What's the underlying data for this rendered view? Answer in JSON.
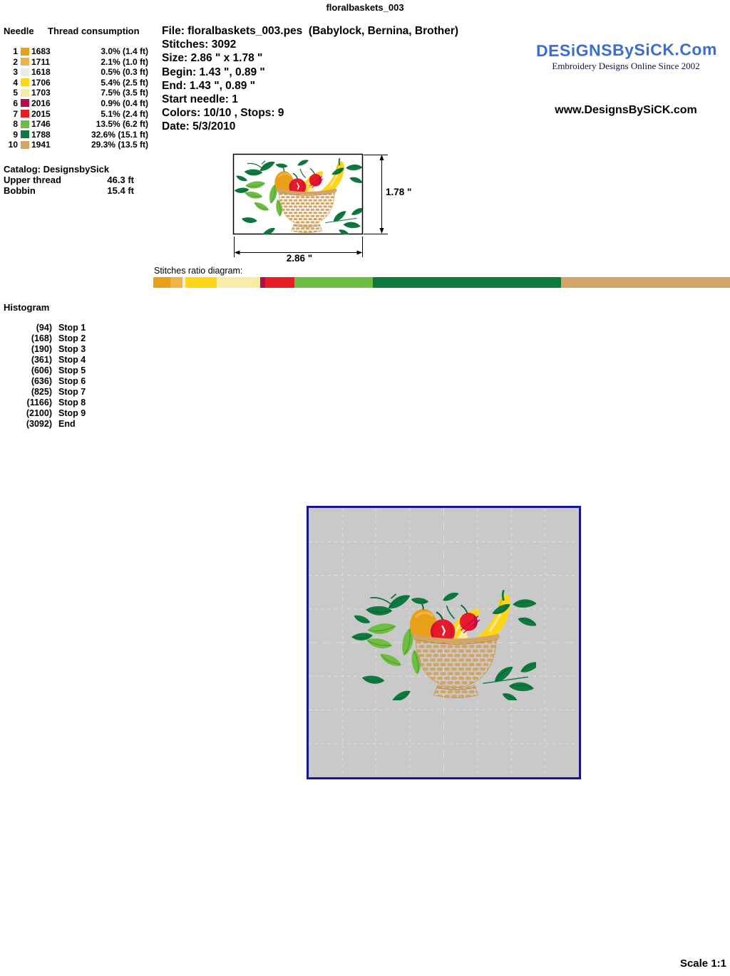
{
  "page_title": "floralbaskets_003",
  "needle_table": {
    "header_needle": "Needle",
    "header_consumption": "Thread consumption",
    "rows": [
      {
        "needle": "1",
        "thread": "1683",
        "color": "#E8A018",
        "pct": 3.0,
        "display": "3.0% (1.4 ft)"
      },
      {
        "needle": "2",
        "thread": "1711",
        "color": "#F0B347",
        "pct": 2.1,
        "display": "2.1% (1.0 ft)"
      },
      {
        "needle": "3",
        "thread": "1618",
        "color": "#EBEBEB",
        "pct": 0.5,
        "display": "0.5% (0.3 ft)"
      },
      {
        "needle": "4",
        "thread": "1706",
        "color": "#FFD517",
        "pct": 5.4,
        "display": "5.4% (2.5 ft)"
      },
      {
        "needle": "5",
        "thread": "1703",
        "color": "#F6ECA3",
        "pct": 7.5,
        "display": "7.5% (3.5 ft)"
      },
      {
        "needle": "6",
        "thread": "2016",
        "color": "#B80A50",
        "pct": 0.9,
        "display": "0.9% (0.4 ft)"
      },
      {
        "needle": "7",
        "thread": "2015",
        "color": "#E81E25",
        "pct": 5.1,
        "display": "5.1% (2.4 ft)"
      },
      {
        "needle": "8",
        "thread": "1746",
        "color": "#6FBE44",
        "pct": 13.5,
        "display": "13.5% (6.2 ft)"
      },
      {
        "needle": "9",
        "thread": "1788",
        "color": "#0E7A3E",
        "pct": 32.6,
        "display": "32.6% (15.1 ft)"
      },
      {
        "needle": "10",
        "thread": "1941",
        "color": "#D2A566",
        "pct": 29.3,
        "display": "29.3% (13.5 ft)"
      }
    ]
  },
  "file_info": {
    "lines": [
      "File: floralbaskets_003.pes  (Babylock, Bernina, Brother)",
      "Stitches: 3092",
      "Size: 2.86 \" x 1.78 \"",
      "Begin: 1.43 \", 0.89 \"",
      "End: 1.43 \", 0.89 \"",
      "Start needle: 1",
      "Colors: 10/10 , Stops: 9",
      "Date: 5/3/2010"
    ]
  },
  "logo": {
    "brand": "DESiGNSBySiCK.Com",
    "tagline": "Embroidery Designs Online Since 2002",
    "url": "www.DesignsBySiCK.com",
    "brand_color": "#3B6FC9"
  },
  "catalog": {
    "catalog_line": "Catalog: DesignsbySick",
    "upper_thread_label": "Upper thread",
    "upper_thread_value": "46.3 ft",
    "bobbin_label": "Bobbin",
    "bobbin_value": "15.4 ft"
  },
  "preview": {
    "width_label": "2.86 \"",
    "height_label": "1.78 \""
  },
  "ratio_diagram": {
    "label": "Stitches ratio diagram:"
  },
  "histogram": {
    "title": "Histogram",
    "stops": [
      {
        "count": "(94)",
        "label": "Stop 1"
      },
      {
        "count": "(168)",
        "label": "Stop 2"
      },
      {
        "count": "(190)",
        "label": "Stop 3"
      },
      {
        "count": "(361)",
        "label": "Stop 4"
      },
      {
        "count": "(606)",
        "label": "Stop 5"
      },
      {
        "count": "(636)",
        "label": "Stop 6"
      },
      {
        "count": "(825)",
        "label": "Stop 7"
      },
      {
        "count": "(1166)",
        "label": "Stop 8"
      },
      {
        "count": "(2100)",
        "label": "Stop 9"
      },
      {
        "count": "(3092)",
        "label": "End"
      }
    ]
  },
  "scale_note": "Scale 1:1",
  "colors": {
    "grid_background": "#C9C9C9",
    "grid_border_navy": "#16168E",
    "grid_line": "#DFDFDF"
  }
}
